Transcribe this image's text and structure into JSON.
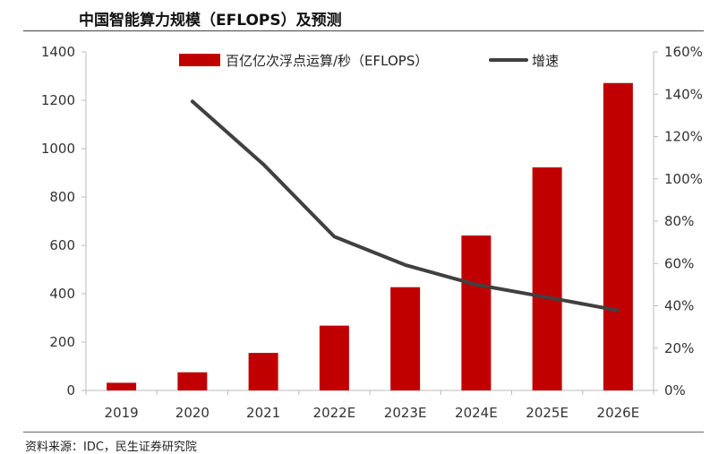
{
  "title": "中国智能算力规模（EFLOPS）及预测",
  "source": "资料来源：IDC，民生证券研究院",
  "colors": {
    "bar": "#c00000",
    "line": "#404040"
  },
  "chart_data": {
    "type": "bar",
    "categories": [
      "2019",
      "2020",
      "2021",
      "2022E",
      "2023E",
      "2024E",
      "2025E",
      "2026E"
    ],
    "series": [
      {
        "name": "百亿亿次浮点运算/秒（EFLOPS）",
        "type": "bar",
        "axis": "left",
        "values": [
          31.7,
          75,
          155.2,
          268,
          427,
          640.7,
          922.8,
          1271.4
        ]
      },
      {
        "name": "增速",
        "type": "line",
        "axis": "right",
        "values": [
          null,
          136.6,
          106.9,
          72.7,
          59.3,
          50.0,
          44.0,
          37.8
        ]
      }
    ],
    "y_left": {
      "min": 0,
      "max": 1400,
      "ticks": [
        0,
        200,
        400,
        600,
        800,
        1000,
        1200,
        1400
      ]
    },
    "y_right": {
      "min": 0,
      "max": 160,
      "ticks": [
        "0%",
        "20%",
        "40%",
        "60%",
        "80%",
        "100%",
        "120%",
        "140%",
        "160%"
      ]
    },
    "grid": false,
    "legend_position": "top-center"
  }
}
